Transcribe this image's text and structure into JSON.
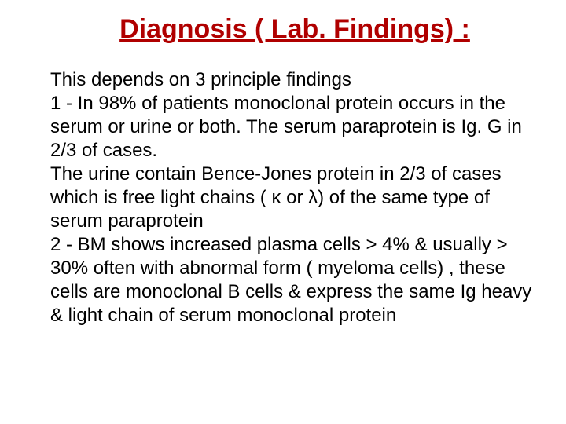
{
  "title": "Diagnosis ( Lab. Findings) :",
  "body": {
    "intro": " This depends on 3 principle findings",
    "p1": " 1 - In 98% of patients monoclonal protein occurs in the serum or urine or both. The serum paraprotein is Ig. G in 2/3 of cases.",
    "p2": " The urine contain Bence-Jones protein in 2/3 of cases which is free light chains ( κ or λ) of the same type of serum paraprotein",
    "p3": " 2 -   BM shows increased plasma cells > 4% & usually > 30% often with abnormal form ( myeloma cells) , these cells are monoclonal B cells & express the same Ig heavy & light chain of serum monoclonal protein"
  },
  "colors": {
    "title": "#b00000",
    "body": "#000000",
    "background": "#ffffff"
  },
  "fonts": {
    "title_size": 34,
    "body_size": 24,
    "family": "Arial"
  }
}
